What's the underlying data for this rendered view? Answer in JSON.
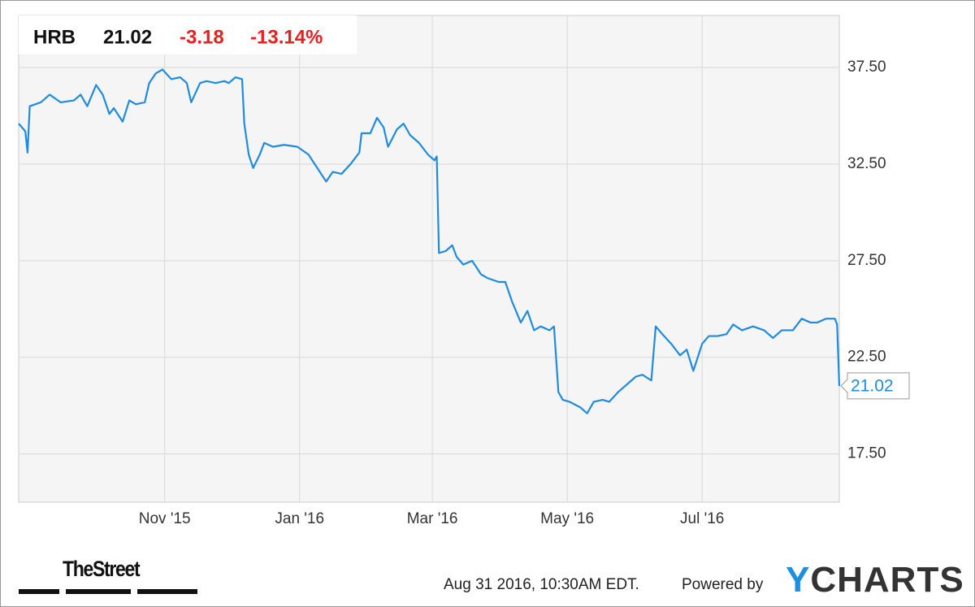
{
  "chart_data": {
    "type": "line",
    "x": [
      -66,
      -63,
      -62,
      -61,
      -56,
      -52,
      -47,
      -41,
      -38,
      -35,
      -31,
      -28,
      -25,
      -23,
      -19,
      -16,
      -13,
      -9,
      -7,
      -4,
      -1,
      3,
      7,
      10,
      12,
      16,
      19,
      23,
      27,
      29,
      32,
      35,
      36,
      38,
      40,
      43,
      45,
      49,
      54,
      60,
      65,
      69,
      73,
      76,
      80,
      84,
      88,
      89,
      93,
      96,
      99,
      101,
      105,
      108,
      111,
      115,
      119,
      122,
      123,
      124,
      127,
      130,
      132,
      135,
      139,
      143,
      146,
      151,
      154,
      157,
      161,
      164,
      167,
      170,
      174,
      176,
      178,
      180,
      183,
      188,
      191,
      194,
      198,
      201,
      205,
      210,
      213,
      216,
      220,
      222,
      225,
      229,
      233,
      236,
      239,
      243,
      246,
      250,
      254,
      257,
      261,
      266,
      271,
      275,
      279,
      284,
      288,
      292,
      295,
      299,
      303,
      304,
      305
    ],
    "series": [
      {
        "name": "HRB",
        "color": "#1f8be0",
        "values": [
          34.6,
          34.2,
          33.1,
          35.5,
          35.7,
          36.1,
          35.7,
          35.8,
          36.1,
          35.5,
          36.6,
          36.1,
          35.1,
          35.4,
          34.7,
          35.8,
          35.6,
          35.7,
          36.7,
          37.2,
          37.4,
          36.9,
          37.0,
          36.7,
          35.7,
          36.7,
          36.8,
          36.7,
          36.8,
          36.7,
          37.0,
          36.9,
          34.6,
          33.0,
          32.3,
          33.0,
          33.6,
          33.4,
          33.5,
          33.4,
          33.0,
          32.3,
          31.6,
          32.1,
          32.0,
          32.5,
          33.1,
          34.1,
          34.1,
          34.9,
          34.4,
          33.4,
          34.3,
          34.6,
          34.0,
          33.6,
          33.0,
          32.7,
          32.9,
          27.9,
          28.0,
          28.3,
          27.7,
          27.3,
          27.5,
          26.8,
          26.6,
          26.4,
          26.4,
          25.4,
          24.3,
          24.9,
          23.9,
          24.1,
          23.9,
          24.1,
          20.7,
          20.3,
          20.2,
          19.9,
          19.6,
          20.2,
          20.3,
          20.2,
          20.7,
          21.2,
          21.5,
          21.6,
          21.3,
          24.1,
          23.7,
          23.2,
          22.6,
          22.9,
          21.8,
          23.2,
          23.6,
          23.6,
          23.7,
          24.2,
          23.9,
          24.1,
          23.9,
          23.5,
          23.9,
          23.9,
          24.5,
          24.3,
          24.3,
          24.5,
          24.5,
          24.2,
          21.02
        ]
      }
    ],
    "last_value": 21.02,
    "change": -3.18,
    "change_percent": {
      "value": -13.14,
      "label": "-13.14%"
    },
    "xlim": [
      -66,
      305
    ],
    "xticks": [
      {
        "value": 0,
        "label": "Nov '15"
      },
      {
        "value": 61,
        "label": "Jan '16"
      },
      {
        "value": 121,
        "label": "Mar '16"
      },
      {
        "value": 182,
        "label": "May '16"
      },
      {
        "value": 243,
        "label": "Jul '16"
      }
    ],
    "ylim": [
      15,
      40.2
    ],
    "yticks": [
      {
        "value": 17.5,
        "label": "17.50"
      },
      {
        "value": 22.5,
        "label": "22.50"
      },
      {
        "value": 27.5,
        "label": "27.50"
      },
      {
        "value": 32.5,
        "label": "32.50"
      },
      {
        "value": 37.5,
        "label": "37.50"
      }
    ],
    "grid": true
  },
  "footer": {
    "logo": "TheStreet",
    "timestamp": "Aug 31 2016, 10:30AM EDT.",
    "powered_by": "Powered by",
    "brand": "YCHARTS"
  }
}
